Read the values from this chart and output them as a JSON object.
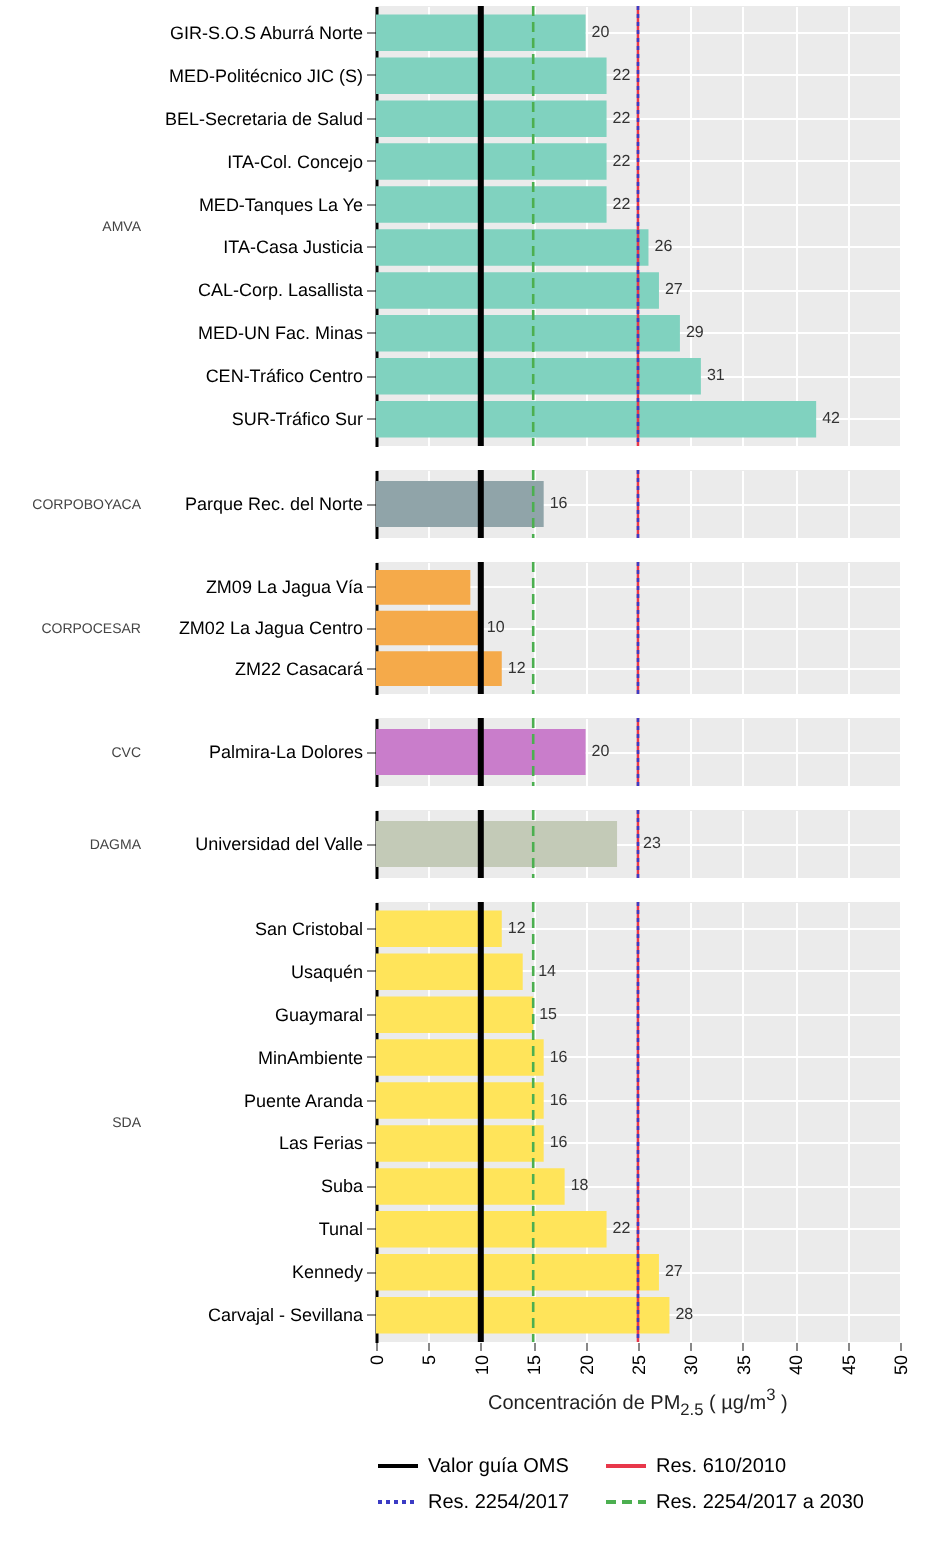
{
  "chart_data": [
    {
      "type": "bar",
      "orientation": "horizontal",
      "title": "AMVA",
      "categories": [
        "GIR-S.O.S Aburrá Norte",
        "MED-Politécnico JIC (S)",
        "BEL-Secretaria de Salud",
        "ITA-Col. Concejo",
        "MED-Tanques La Ye",
        "ITA-Casa Justicia",
        "CAL-Corp. Lasallista",
        "MED-UN Fac. Minas",
        "CEN-Tráfico Centro",
        "SUR-Tráfico Sur"
      ],
      "values": [
        20,
        22,
        22,
        22,
        22,
        26,
        27,
        29,
        31,
        42
      ],
      "color": "#80d2bf",
      "data_labels": true,
      "xlim": [
        0,
        50
      ],
      "xticks": [
        0,
        5,
        10,
        15,
        20,
        25,
        30,
        35,
        40,
        45,
        50
      ],
      "grid": true,
      "tick_labels": "y",
      "ref_lines": [
        {
          "axis": "x",
          "value": 10,
          "color": "#000000",
          "line_style": "solid"
        },
        {
          "axis": "x",
          "value": 25,
          "color": "#e8374a",
          "line_style": "solid"
        },
        {
          "axis": "x",
          "value": 25,
          "color": "#3b3bc4",
          "line_style": "dotted"
        },
        {
          "axis": "x",
          "value": 15,
          "color": "#4caf50",
          "line_style": "dashed"
        }
      ]
    },
    {
      "type": "bar",
      "orientation": "horizontal",
      "title": "CORPOBOYACA",
      "categories": [
        "Parque Rec. del Norte"
      ],
      "values": [
        16
      ],
      "color": "#90a4a9",
      "data_labels": true,
      "xlim": [
        0,
        50
      ],
      "xticks": [
        0,
        5,
        10,
        15,
        20,
        25,
        30,
        35,
        40,
        45,
        50
      ],
      "grid": true,
      "tick_labels": "y",
      "ref_lines": [
        {
          "axis": "x",
          "value": 10,
          "color": "#000000",
          "line_style": "solid"
        },
        {
          "axis": "x",
          "value": 25,
          "color": "#e8374a",
          "line_style": "solid"
        },
        {
          "axis": "x",
          "value": 25,
          "color": "#3b3bc4",
          "line_style": "dotted"
        },
        {
          "axis": "x",
          "value": 15,
          "color": "#4caf50",
          "line_style": "dashed"
        }
      ]
    },
    {
      "type": "bar",
      "orientation": "horizontal",
      "title": "CORPOCESAR",
      "categories": [
        "ZM09 La Jagua Vía",
        "ZM02 La Jagua Centro",
        "ZM22 Casacará"
      ],
      "values": [
        9,
        10,
        12
      ],
      "value_labels": [
        null,
        "10",
        "12"
      ],
      "color": "#f5aa4a",
      "xlim": [
        0,
        50
      ],
      "xticks": [
        0,
        5,
        10,
        15,
        20,
        25,
        30,
        35,
        40,
        45,
        50
      ],
      "grid": true,
      "tick_labels": "y",
      "ref_lines": [
        {
          "axis": "x",
          "value": 10,
          "color": "#000000",
          "line_style": "solid"
        },
        {
          "axis": "x",
          "value": 25,
          "color": "#e8374a",
          "line_style": "solid"
        },
        {
          "axis": "x",
          "value": 25,
          "color": "#3b3bc4",
          "line_style": "dotted"
        },
        {
          "axis": "x",
          "value": 15,
          "color": "#4caf50",
          "line_style": "dashed"
        }
      ]
    },
    {
      "type": "bar",
      "orientation": "horizontal",
      "title": "CVC",
      "categories": [
        "Palmira-La Dolores"
      ],
      "values": [
        20
      ],
      "color": "#c97dcb",
      "data_labels": true,
      "xlim": [
        0,
        50
      ],
      "xticks": [
        0,
        5,
        10,
        15,
        20,
        25,
        30,
        35,
        40,
        45,
        50
      ],
      "grid": true,
      "tick_labels": "y",
      "ref_lines": [
        {
          "axis": "x",
          "value": 10,
          "color": "#000000",
          "line_style": "solid"
        },
        {
          "axis": "x",
          "value": 25,
          "color": "#e8374a",
          "line_style": "solid"
        },
        {
          "axis": "x",
          "value": 25,
          "color": "#3b3bc4",
          "line_style": "dotted"
        },
        {
          "axis": "x",
          "value": 15,
          "color": "#4caf50",
          "line_style": "dashed"
        }
      ]
    },
    {
      "type": "bar",
      "orientation": "horizontal",
      "title": "DAGMA",
      "categories": [
        "Universidad del Valle"
      ],
      "values": [
        23
      ],
      "color": "#c3cab7",
      "data_labels": true,
      "xlim": [
        0,
        50
      ],
      "xticks": [
        0,
        5,
        10,
        15,
        20,
        25,
        30,
        35,
        40,
        45,
        50
      ],
      "grid": true,
      "tick_labels": "y",
      "ref_lines": [
        {
          "axis": "x",
          "value": 10,
          "color": "#000000",
          "line_style": "solid"
        },
        {
          "axis": "x",
          "value": 25,
          "color": "#e8374a",
          "line_style": "solid"
        },
        {
          "axis": "x",
          "value": 25,
          "color": "#3b3bc4",
          "line_style": "dotted"
        },
        {
          "axis": "x",
          "value": 15,
          "color": "#4caf50",
          "line_style": "dashed"
        }
      ]
    },
    {
      "type": "bar",
      "orientation": "horizontal",
      "title": "SDA",
      "categories": [
        "San Cristobal",
        "Usaquén",
        "Guaymaral",
        "MinAmbiente",
        "Puente Aranda",
        "Las Ferias",
        "Suba",
        "Tunal",
        "Kennedy",
        "Carvajal - Sevillana"
      ],
      "values": [
        12,
        14,
        15,
        16,
        16,
        16,
        18,
        22,
        27,
        28
      ],
      "color": "#ffe45a",
      "data_labels": true,
      "xlim": [
        0,
        50
      ],
      "xticks": [
        0,
        5,
        10,
        15,
        20,
        25,
        30,
        35,
        40,
        45,
        50
      ],
      "grid": true,
      "xlabel": "Concentración de PM$_{2.5}$ ( µg/m$^{3}$ )",
      "legend": "bottom",
      "ref_lines": [
        {
          "axis": "x",
          "value": 10,
          "label": "Valor guía OMS",
          "color": "#000000",
          "line_style": "solid"
        },
        {
          "axis": "x",
          "value": 25,
          "label": "Res. 610/2010",
          "color": "#e8374a",
          "line_style": "solid"
        },
        {
          "axis": "x",
          "value": 25,
          "label": "Res. 2254/2017",
          "color": "#3b3bc4",
          "line_style": "dotted"
        },
        {
          "axis": "x",
          "value": 15,
          "label": "Res. 2254/2017 a 2030",
          "color": "#4caf50",
          "line_style": "dashed"
        }
      ]
    }
  ]
}
